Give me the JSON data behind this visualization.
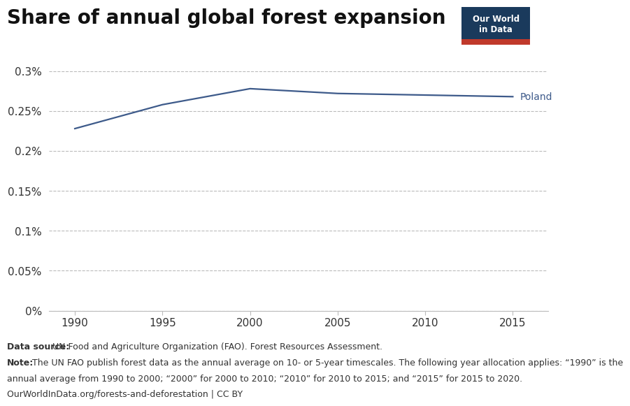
{
  "title": "Share of annual global forest expansion",
  "x_values": [
    1990,
    1995,
    2000,
    2005,
    2010,
    2015
  ],
  "y_values": [
    0.00228,
    0.00258,
    0.00278,
    0.00272,
    0.0027,
    0.00268
  ],
  "line_color": "#3d5a8a",
  "label": "Poland",
  "x_min": 1988.5,
  "x_max": 2017,
  "y_min": 0,
  "y_max": 0.00315,
  "yticks": [
    0,
    0.0005,
    0.001,
    0.0015,
    0.002,
    0.0025,
    0.003
  ],
  "ytick_labels": [
    "0%",
    "0.05%",
    "0.1%",
    "0.15%",
    "0.2%",
    "0.25%",
    "0.3%"
  ],
  "xticks": [
    1990,
    1995,
    2000,
    2005,
    2010,
    2015
  ],
  "background_color": "#ffffff",
  "grid_color": "#bbbbbb",
  "data_source_bold": "Data source:",
  "data_source_rest": " UN Food and Agriculture Organization (FAO). Forest Resources Assessment.",
  "note_bold": "Note:",
  "note_rest": " The UN FAO publish forest data as the annual average on 10- or 5-year timescales. The following year allocation applies: “1990” is the",
  "note_line2": "annual average from 1990 to 2000; “2000” for 2000 to 2010; “2010” for 2010 to 2015; and “2015” for 2015 to 2020.",
  "url_text": "OurWorldInData.org/forests-and-deforestation | CC BY",
  "owid_box_color": "#1a3a5c",
  "owid_red": "#c0392b",
  "title_fontsize": 20,
  "annotation_fontsize": 10,
  "footnote_fontsize": 9,
  "tick_fontsize": 11
}
